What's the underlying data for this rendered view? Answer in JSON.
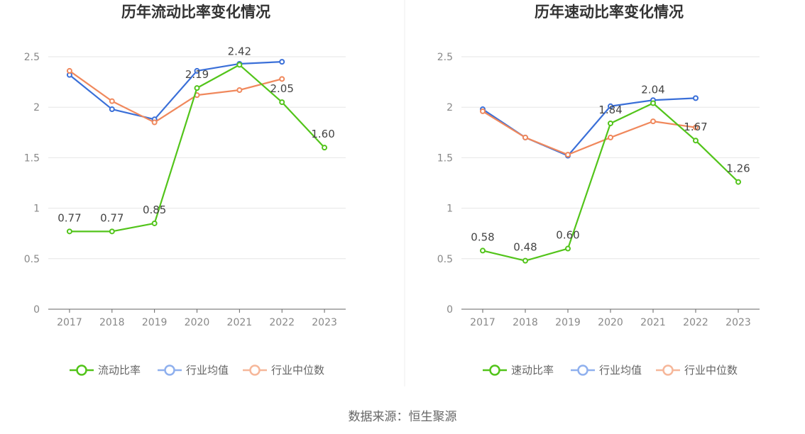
{
  "source_text": "数据来源：恒生聚源",
  "chart_data": [
    {
      "type": "line",
      "title": "历年流动比率变化情况",
      "categories": [
        "2017",
        "2018",
        "2019",
        "2020",
        "2021",
        "2022",
        "2023"
      ],
      "ylim": [
        0,
        2.5
      ],
      "yticks": [
        "0",
        "0.5",
        "1",
        "1.5",
        "2",
        "2.5"
      ],
      "grid": true,
      "legend_position": "bottom",
      "series": [
        {
          "name": "流动比率",
          "color": "#52c41a",
          "values": [
            0.77,
            0.77,
            0.85,
            2.19,
            2.42,
            2.05,
            1.6
          ],
          "labels": [
            "0.77",
            "0.77",
            "0.85",
            "2.19",
            "2.42",
            "2.05",
            "1.60"
          ]
        },
        {
          "name": "行业均值",
          "color": "#3a6fd8",
          "values": [
            2.32,
            1.98,
            1.88,
            2.36,
            2.43,
            2.45,
            null
          ]
        },
        {
          "name": "行业中位数",
          "color": "#f0885c",
          "values": [
            2.36,
            2.06,
            1.85,
            2.12,
            2.17,
            2.28,
            null
          ]
        }
      ]
    },
    {
      "type": "line",
      "title": "历年速动比率变化情况",
      "categories": [
        "2017",
        "2018",
        "2019",
        "2020",
        "2021",
        "2022",
        "2023"
      ],
      "ylim": [
        0,
        2.5
      ],
      "yticks": [
        "0",
        "0.5",
        "1",
        "1.5",
        "2",
        "2.5"
      ],
      "grid": true,
      "legend_position": "bottom",
      "series": [
        {
          "name": "速动比率",
          "color": "#52c41a",
          "values": [
            0.58,
            0.48,
            0.6,
            1.84,
            2.04,
            1.67,
            1.26
          ],
          "labels": [
            "0.58",
            "0.48",
            "0.60",
            "1.84",
            "2.04",
            "1.67",
            "1.26"
          ]
        },
        {
          "name": "行业均值",
          "color": "#3a6fd8",
          "values": [
            1.98,
            1.7,
            1.52,
            2.01,
            2.07,
            2.09,
            null
          ]
        },
        {
          "name": "行业中位数",
          "color": "#f0885c",
          "values": [
            1.96,
            1.7,
            1.53,
            1.7,
            1.86,
            1.8,
            null
          ]
        }
      ]
    }
  ]
}
